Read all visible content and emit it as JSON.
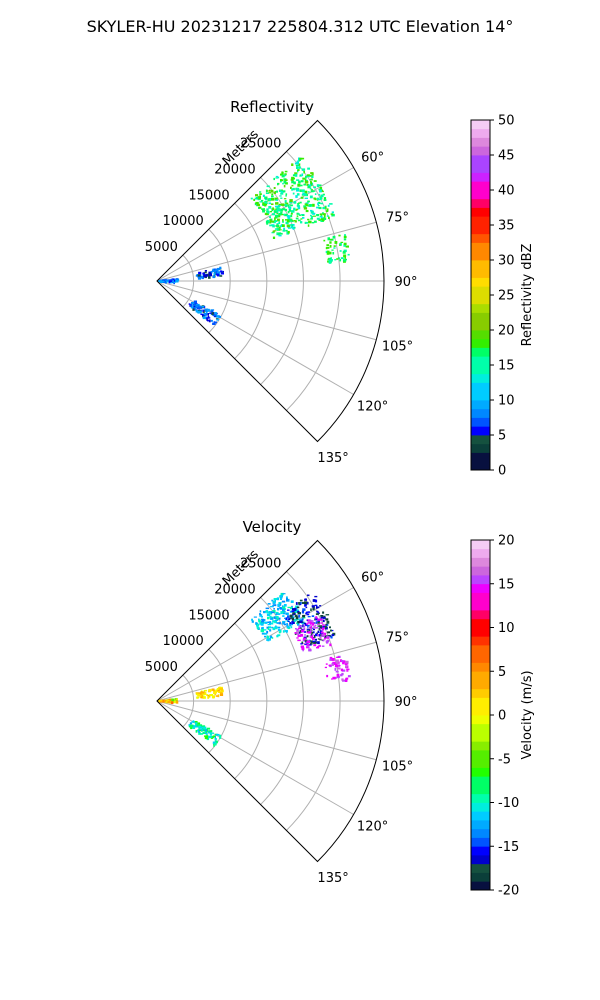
{
  "figure": {
    "title": "SKYLER-HU  20231217  225804.312 UTC Elevation 14°"
  },
  "chart_data": [
    {
      "type": "heatmap",
      "projection": "polar-sector",
      "title": "Reflectivity",
      "range_axis_label": "Meters",
      "range_ticks": [
        5000,
        10000,
        15000,
        20000,
        25000
      ],
      "range_tick_labels": [
        "5000",
        "10000",
        "15000",
        "20000",
        "25000"
      ],
      "rlim": [
        0,
        31000
      ],
      "azimuth_range_deg": [
        45,
        135
      ],
      "azimuth_ticks": [
        60,
        75,
        90,
        105,
        120,
        135
      ],
      "azimuth_tick_labels": [
        "60°",
        "75°",
        "90°",
        "105°",
        "120°",
        "135°"
      ],
      "grid": true,
      "colorbar": {
        "label": "Reflectivity dBZ",
        "range": [
          0,
          50
        ],
        "ticks": [
          0,
          5,
          10,
          15,
          20,
          25,
          30,
          35,
          40,
          45,
          50
        ],
        "tick_labels": [
          "0",
          "5",
          "10",
          "15",
          "20",
          "25",
          "30",
          "35",
          "40",
          "45",
          "50"
        ]
      },
      "echo_regions": [
        {
          "az": [
            49,
            70
          ],
          "r": [
            17000,
            26000
          ],
          "value": [
            13,
            20
          ]
        },
        {
          "az": [
            76,
            84
          ],
          "r": [
            23500,
            26500
          ],
          "value": [
            15,
            19
          ]
        },
        {
          "az": [
            78,
            86
          ],
          "r": [
            5500,
            9000
          ],
          "value": [
            3,
            9
          ]
        },
        {
          "az": [
            84,
            95
          ],
          "r": [
            300,
            2800
          ],
          "value": [
            6,
            11
          ]
        },
        {
          "az": [
            118,
            128
          ],
          "r": [
            5500,
            10000
          ],
          "value": [
            4,
            10
          ]
        }
      ]
    },
    {
      "type": "heatmap",
      "projection": "polar-sector",
      "title": "Velocity",
      "range_axis_label": "Meters",
      "range_ticks": [
        5000,
        10000,
        15000,
        20000,
        25000
      ],
      "range_tick_labels": [
        "5000",
        "10000",
        "15000",
        "20000",
        "25000"
      ],
      "rlim": [
        0,
        31000
      ],
      "azimuth_range_deg": [
        45,
        135
      ],
      "azimuth_ticks": [
        60,
        75,
        90,
        105,
        120,
        135
      ],
      "azimuth_tick_labels": [
        "60°",
        "75°",
        "90°",
        "105°",
        "120°",
        "135°"
      ],
      "grid": true,
      "colorbar": {
        "label": "Velocity (m/s)",
        "range": [
          -20,
          20
        ],
        "ticks": [
          -20,
          -15,
          -10,
          -5,
          0,
          5,
          10,
          15,
          20
        ],
        "tick_labels": [
          "-20",
          "-15",
          "-10",
          "-5",
          "0",
          "5",
          "10",
          "15",
          "20"
        ]
      },
      "echo_regions": [
        {
          "az": [
            49,
            62
          ],
          "r": [
            17000,
            23000
          ],
          "value": [
            -13,
            -9
          ]
        },
        {
          "az": [
            55,
            70
          ],
          "r": [
            21000,
            26000
          ],
          "value": [
            -18,
            -14
          ]
        },
        {
          "az": [
            62,
            72
          ],
          "r": [
            21000,
            25000
          ],
          "value": [
            14,
            17
          ]
        },
        {
          "az": [
            76,
            84
          ],
          "r": [
            23500,
            26500
          ],
          "value": [
            14,
            17
          ]
        },
        {
          "az": [
            78,
            86
          ],
          "r": [
            5500,
            9000
          ],
          "value": [
            0,
            4
          ]
        },
        {
          "az": [
            84,
            95
          ],
          "r": [
            300,
            2800
          ],
          "value": [
            -6,
            8
          ]
        },
        {
          "az": [
            118,
            128
          ],
          "r": [
            5500,
            10000
          ],
          "value": [
            -12,
            -6
          ]
        }
      ]
    }
  ]
}
